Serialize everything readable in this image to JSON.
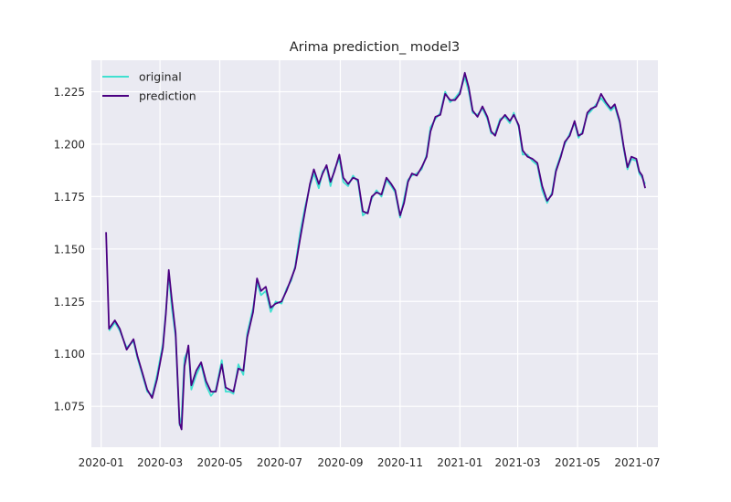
{
  "chart_data": {
    "type": "line",
    "title": "Arima prediction_ model3",
    "xlabel": "",
    "ylabel": "",
    "xlim": [
      "2019-12-22",
      "2021-07-22"
    ],
    "ylim": [
      1.0555,
      1.24
    ],
    "xticks": [
      "2020-01-01",
      "2020-03-01",
      "2020-05-01",
      "2020-07-01",
      "2020-09-01",
      "2020-11-01",
      "2021-01-01",
      "2021-03-01",
      "2021-05-01",
      "2021-07-01"
    ],
    "xtick_labels": [
      "2020-01",
      "2020-03",
      "2020-05",
      "2020-07",
      "2020-09",
      "2020-11",
      "2021-01",
      "2021-03",
      "2021-05",
      "2021-07"
    ],
    "yticks": [
      1.075,
      1.1,
      1.125,
      1.15,
      1.175,
      1.2,
      1.225
    ],
    "ytick_labels": [
      "1.075",
      "1.100",
      "1.125",
      "1.150",
      "1.175",
      "1.200",
      "1.225"
    ],
    "grid": true,
    "legend": {
      "position": "top-left",
      "entries": [
        "original",
        "prediction"
      ]
    },
    "series": [
      {
        "name": "original",
        "color": "#40e0d0",
        "points": [
          [
            "2020-01-09",
            1.111
          ],
          [
            "2020-01-15",
            1.115
          ],
          [
            "2020-01-20",
            1.111
          ],
          [
            "2020-01-27",
            1.103
          ],
          [
            "2020-02-03",
            1.106
          ],
          [
            "2020-02-07",
            1.098
          ],
          [
            "2020-02-12",
            1.09
          ],
          [
            "2020-02-17",
            1.082
          ],
          [
            "2020-02-22",
            1.08
          ],
          [
            "2020-02-27",
            1.09
          ],
          [
            "2020-03-04",
            1.105
          ],
          [
            "2020-03-07",
            1.12
          ],
          [
            "2020-03-10",
            1.138
          ],
          [
            "2020-03-13",
            1.122
          ],
          [
            "2020-03-17",
            1.108
          ],
          [
            "2020-03-21",
            1.066
          ],
          [
            "2020-03-23",
            1.07
          ],
          [
            "2020-03-26",
            1.098
          ],
          [
            "2020-03-30",
            1.102
          ],
          [
            "2020-04-02",
            1.083
          ],
          [
            "2020-04-07",
            1.09
          ],
          [
            "2020-04-12",
            1.095
          ],
          [
            "2020-04-17",
            1.085
          ],
          [
            "2020-04-22",
            1.08
          ],
          [
            "2020-04-27",
            1.083
          ],
          [
            "2020-05-03",
            1.097
          ],
          [
            "2020-05-07",
            1.082
          ],
          [
            "2020-05-11",
            1.082
          ],
          [
            "2020-05-15",
            1.081
          ],
          [
            "2020-05-20",
            1.095
          ],
          [
            "2020-05-25",
            1.09
          ],
          [
            "2020-05-29",
            1.11
          ],
          [
            "2020-06-04",
            1.122
          ],
          [
            "2020-06-08",
            1.134
          ],
          [
            "2020-06-12",
            1.128
          ],
          [
            "2020-06-17",
            1.13
          ],
          [
            "2020-06-22",
            1.12
          ],
          [
            "2020-06-27",
            1.125
          ],
          [
            "2020-07-03",
            1.124
          ],
          [
            "2020-07-08",
            1.131
          ],
          [
            "2020-07-13",
            1.135
          ],
          [
            "2020-07-17",
            1.142
          ],
          [
            "2020-07-22",
            1.158
          ],
          [
            "2020-07-27",
            1.17
          ],
          [
            "2020-08-01",
            1.18
          ],
          [
            "2020-08-05",
            1.186
          ],
          [
            "2020-08-10",
            1.179
          ],
          [
            "2020-08-14",
            1.187
          ],
          [
            "2020-08-18",
            1.189
          ],
          [
            "2020-08-22",
            1.18
          ],
          [
            "2020-08-26",
            1.188
          ],
          [
            "2020-08-31",
            1.193
          ],
          [
            "2020-09-04",
            1.182
          ],
          [
            "2020-09-09",
            1.18
          ],
          [
            "2020-09-14",
            1.185
          ],
          [
            "2020-09-19",
            1.182
          ],
          [
            "2020-09-24",
            1.166
          ],
          [
            "2020-09-29",
            1.168
          ],
          [
            "2020-10-03",
            1.174
          ],
          [
            "2020-10-08",
            1.178
          ],
          [
            "2020-10-13",
            1.175
          ],
          [
            "2020-10-18",
            1.183
          ],
          [
            "2020-10-23",
            1.18
          ],
          [
            "2020-10-27",
            1.177
          ],
          [
            "2020-11-01",
            1.165
          ],
          [
            "2020-11-05",
            1.174
          ],
          [
            "2020-11-09",
            1.183
          ],
          [
            "2020-11-13",
            1.185
          ],
          [
            "2020-11-18",
            1.186
          ],
          [
            "2020-11-23",
            1.188
          ],
          [
            "2020-11-28",
            1.195
          ],
          [
            "2020-12-02",
            1.208
          ],
          [
            "2020-12-07",
            1.212
          ],
          [
            "2020-12-12",
            1.215
          ],
          [
            "2020-12-17",
            1.225
          ],
          [
            "2020-12-22",
            1.22
          ],
          [
            "2020-12-27",
            1.222
          ],
          [
            "2021-01-01",
            1.225
          ],
          [
            "2021-01-06",
            1.232
          ],
          [
            "2021-01-10",
            1.225
          ],
          [
            "2021-01-14",
            1.215
          ],
          [
            "2021-01-19",
            1.214
          ],
          [
            "2021-01-24",
            1.217
          ],
          [
            "2021-01-29",
            1.212
          ],
          [
            "2021-02-02",
            1.205
          ],
          [
            "2021-02-06",
            1.205
          ],
          [
            "2021-02-11",
            1.212
          ],
          [
            "2021-02-16",
            1.213
          ],
          [
            "2021-02-21",
            1.21
          ],
          [
            "2021-02-25",
            1.215
          ],
          [
            "2021-03-02",
            1.208
          ],
          [
            "2021-03-06",
            1.195
          ],
          [
            "2021-03-11",
            1.195
          ],
          [
            "2021-03-16",
            1.192
          ],
          [
            "2021-03-21",
            1.19
          ],
          [
            "2021-03-26",
            1.178
          ],
          [
            "2021-03-31",
            1.172
          ],
          [
            "2021-04-05",
            1.177
          ],
          [
            "2021-04-09",
            1.188
          ],
          [
            "2021-04-14",
            1.195
          ],
          [
            "2021-04-18",
            1.2
          ],
          [
            "2021-04-23",
            1.205
          ],
          [
            "2021-04-28",
            1.21
          ],
          [
            "2021-05-02",
            1.203
          ],
          [
            "2021-05-06",
            1.206
          ],
          [
            "2021-05-11",
            1.214
          ],
          [
            "2021-05-15",
            1.216
          ],
          [
            "2021-05-20",
            1.219
          ],
          [
            "2021-05-25",
            1.222
          ],
          [
            "2021-05-30",
            1.219
          ],
          [
            "2021-06-04",
            1.216
          ],
          [
            "2021-06-08",
            1.218
          ],
          [
            "2021-06-13",
            1.21
          ],
          [
            "2021-06-17",
            1.198
          ],
          [
            "2021-06-21",
            1.188
          ],
          [
            "2021-06-25",
            1.193
          ],
          [
            "2021-06-30",
            1.192
          ],
          [
            "2021-07-03",
            1.186
          ],
          [
            "2021-07-06",
            1.184
          ],
          [
            "2021-07-09",
            1.181
          ]
        ]
      },
      {
        "name": "prediction",
        "color": "#4b0082",
        "points": [
          [
            "2020-01-06",
            1.158
          ],
          [
            "2020-01-09",
            1.112
          ],
          [
            "2020-01-15",
            1.116
          ],
          [
            "2020-01-20",
            1.112
          ],
          [
            "2020-01-27",
            1.102
          ],
          [
            "2020-02-03",
            1.107
          ],
          [
            "2020-02-07",
            1.099
          ],
          [
            "2020-02-12",
            1.091
          ],
          [
            "2020-02-17",
            1.083
          ],
          [
            "2020-02-22",
            1.079
          ],
          [
            "2020-02-27",
            1.088
          ],
          [
            "2020-03-04",
            1.103
          ],
          [
            "2020-03-07",
            1.119
          ],
          [
            "2020-03-10",
            1.14
          ],
          [
            "2020-03-13",
            1.126
          ],
          [
            "2020-03-17",
            1.11
          ],
          [
            "2020-03-21",
            1.067
          ],
          [
            "2020-03-23",
            1.064
          ],
          [
            "2020-03-26",
            1.094
          ],
          [
            "2020-03-30",
            1.104
          ],
          [
            "2020-04-02",
            1.085
          ],
          [
            "2020-04-07",
            1.092
          ],
          [
            "2020-04-12",
            1.096
          ],
          [
            "2020-04-17",
            1.087
          ],
          [
            "2020-04-22",
            1.082
          ],
          [
            "2020-04-27",
            1.082
          ],
          [
            "2020-05-03",
            1.095
          ],
          [
            "2020-05-07",
            1.084
          ],
          [
            "2020-05-11",
            1.083
          ],
          [
            "2020-05-15",
            1.082
          ],
          [
            "2020-05-20",
            1.093
          ],
          [
            "2020-05-25",
            1.092
          ],
          [
            "2020-05-29",
            1.108
          ],
          [
            "2020-06-04",
            1.12
          ],
          [
            "2020-06-08",
            1.136
          ],
          [
            "2020-06-12",
            1.13
          ],
          [
            "2020-06-17",
            1.132
          ],
          [
            "2020-06-22",
            1.122
          ],
          [
            "2020-06-27",
            1.124
          ],
          [
            "2020-07-03",
            1.125
          ],
          [
            "2020-07-08",
            1.13
          ],
          [
            "2020-07-13",
            1.136
          ],
          [
            "2020-07-17",
            1.141
          ],
          [
            "2020-07-22",
            1.155
          ],
          [
            "2020-07-27",
            1.168
          ],
          [
            "2020-08-01",
            1.181
          ],
          [
            "2020-08-05",
            1.188
          ],
          [
            "2020-08-10",
            1.181
          ],
          [
            "2020-08-14",
            1.186
          ],
          [
            "2020-08-18",
            1.19
          ],
          [
            "2020-08-22",
            1.182
          ],
          [
            "2020-08-26",
            1.187
          ],
          [
            "2020-08-31",
            1.195
          ],
          [
            "2020-09-04",
            1.184
          ],
          [
            "2020-09-09",
            1.181
          ],
          [
            "2020-09-14",
            1.184
          ],
          [
            "2020-09-19",
            1.183
          ],
          [
            "2020-09-24",
            1.168
          ],
          [
            "2020-09-29",
            1.167
          ],
          [
            "2020-10-03",
            1.175
          ],
          [
            "2020-10-08",
            1.177
          ],
          [
            "2020-10-13",
            1.176
          ],
          [
            "2020-10-18",
            1.184
          ],
          [
            "2020-10-23",
            1.181
          ],
          [
            "2020-10-27",
            1.178
          ],
          [
            "2020-11-01",
            1.166
          ],
          [
            "2020-11-05",
            1.172
          ],
          [
            "2020-11-09",
            1.182
          ],
          [
            "2020-11-13",
            1.186
          ],
          [
            "2020-11-18",
            1.185
          ],
          [
            "2020-11-23",
            1.189
          ],
          [
            "2020-11-28",
            1.194
          ],
          [
            "2020-12-02",
            1.206
          ],
          [
            "2020-12-07",
            1.213
          ],
          [
            "2020-12-12",
            1.214
          ],
          [
            "2020-12-17",
            1.224
          ],
          [
            "2020-12-22",
            1.221
          ],
          [
            "2020-12-27",
            1.221
          ],
          [
            "2021-01-01",
            1.224
          ],
          [
            "2021-01-06",
            1.234
          ],
          [
            "2021-01-10",
            1.227
          ],
          [
            "2021-01-14",
            1.216
          ],
          [
            "2021-01-19",
            1.213
          ],
          [
            "2021-01-24",
            1.218
          ],
          [
            "2021-01-29",
            1.213
          ],
          [
            "2021-02-02",
            1.206
          ],
          [
            "2021-02-06",
            1.204
          ],
          [
            "2021-02-11",
            1.211
          ],
          [
            "2021-02-16",
            1.214
          ],
          [
            "2021-02-21",
            1.211
          ],
          [
            "2021-02-25",
            1.214
          ],
          [
            "2021-03-02",
            1.209
          ],
          [
            "2021-03-06",
            1.197
          ],
          [
            "2021-03-11",
            1.194
          ],
          [
            "2021-03-16",
            1.193
          ],
          [
            "2021-03-21",
            1.191
          ],
          [
            "2021-03-26",
            1.18
          ],
          [
            "2021-03-31",
            1.173
          ],
          [
            "2021-04-05",
            1.176
          ],
          [
            "2021-04-09",
            1.187
          ],
          [
            "2021-04-14",
            1.194
          ],
          [
            "2021-04-18",
            1.201
          ],
          [
            "2021-04-23",
            1.204
          ],
          [
            "2021-04-28",
            1.211
          ],
          [
            "2021-05-02",
            1.204
          ],
          [
            "2021-05-06",
            1.205
          ],
          [
            "2021-05-11",
            1.215
          ],
          [
            "2021-05-15",
            1.217
          ],
          [
            "2021-05-20",
            1.218
          ],
          [
            "2021-05-25",
            1.224
          ],
          [
            "2021-05-30",
            1.22
          ],
          [
            "2021-06-04",
            1.217
          ],
          [
            "2021-06-08",
            1.219
          ],
          [
            "2021-06-13",
            1.211
          ],
          [
            "2021-06-17",
            1.199
          ],
          [
            "2021-06-21",
            1.189
          ],
          [
            "2021-06-25",
            1.194
          ],
          [
            "2021-06-30",
            1.193
          ],
          [
            "2021-07-03",
            1.187
          ],
          [
            "2021-07-06",
            1.185
          ],
          [
            "2021-07-09",
            1.179
          ]
        ]
      }
    ]
  }
}
